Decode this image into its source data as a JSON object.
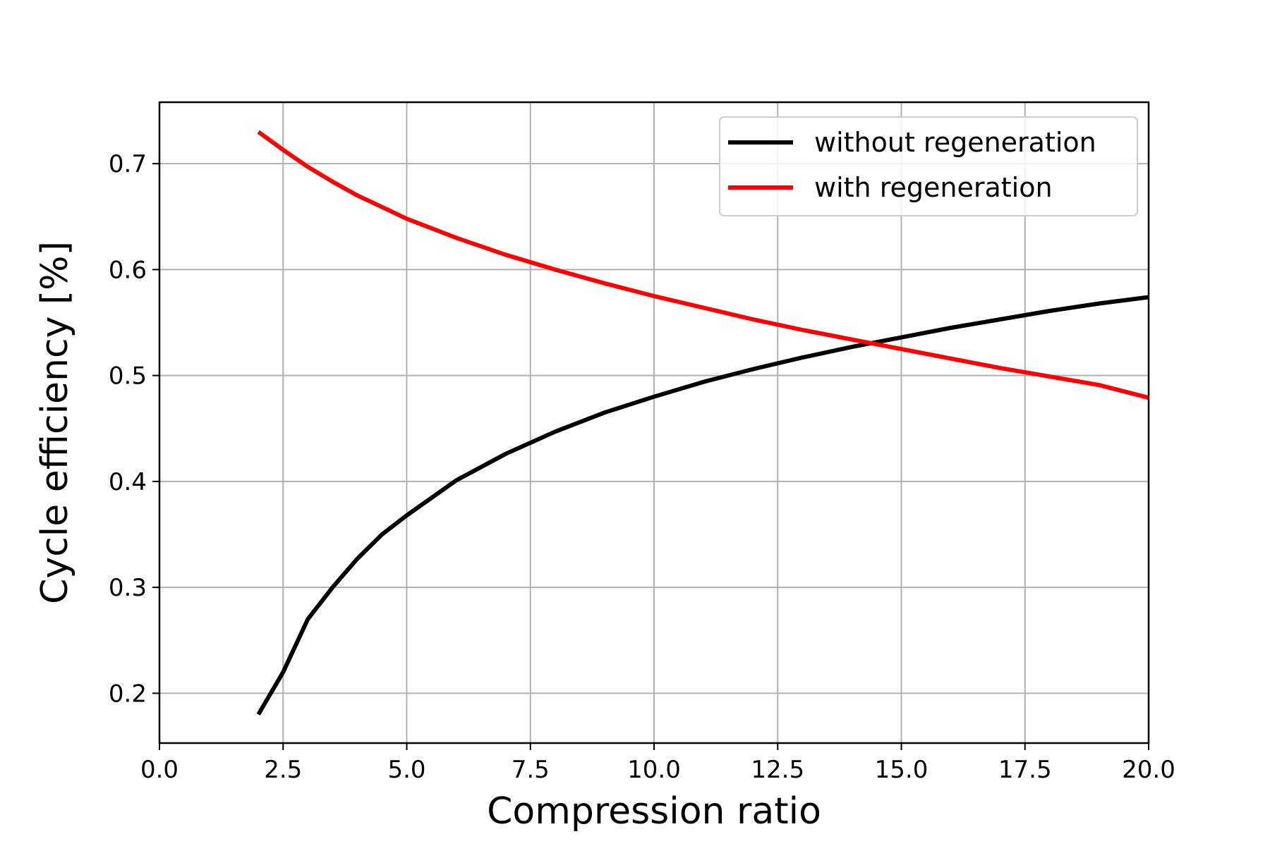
{
  "chart_data": {
    "type": "line",
    "title": "",
    "xlabel": "Compression ratio",
    "ylabel": "Cycle efficiency [%]",
    "xlim": [
      0,
      20
    ],
    "ylim": [
      0.153,
      0.758
    ],
    "x_ticks": [
      "0.0",
      "2.5",
      "5.0",
      "7.5",
      "10.0",
      "12.5",
      "15.0",
      "17.5",
      "20.0"
    ],
    "y_ticks": [
      "0.2",
      "0.3",
      "0.4",
      "0.5",
      "0.6",
      "0.7"
    ],
    "grid": true,
    "legend_position": "top-right",
    "x": [
      2,
      2.5,
      3,
      3.5,
      4,
      4.5,
      5,
      6,
      7,
      8,
      9,
      10,
      11,
      12,
      13,
      14,
      15,
      16,
      17,
      18,
      19,
      20
    ],
    "series": [
      {
        "name": "without regeneration",
        "color": "#000000",
        "values": [
          0.18,
          0.22,
          0.27,
          0.3,
          0.327,
          0.35,
          0.368,
          0.401,
          0.426,
          0.447,
          0.465,
          0.48,
          0.494,
          0.506,
          0.517,
          0.527,
          0.536,
          0.545,
          0.553,
          0.561,
          0.568,
          0.574
        ]
      },
      {
        "name": "with regeneration",
        "color": "#ff0000",
        "values": [
          0.73,
          0.713,
          0.697,
          0.683,
          0.67,
          0.659,
          0.648,
          0.63,
          0.614,
          0.6,
          0.587,
          0.575,
          0.564,
          0.553,
          0.543,
          0.534,
          0.525,
          0.516,
          0.507,
          0.499,
          0.491,
          0.479
        ]
      }
    ]
  }
}
